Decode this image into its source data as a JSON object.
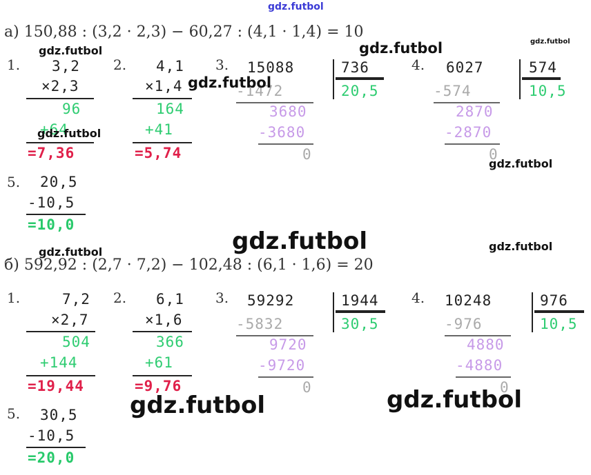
{
  "watermark": "gdz.futbol",
  "part_a": {
    "equation": "а) 150,88 : (3,2 · 2,3) − 60,27 : (4,1 · 1,4) = 10",
    "s1": {
      "label": "1.",
      "a": "3,2",
      "b": "×2,3",
      "p1": "96",
      "p2": "+64",
      "res": "=7,36"
    },
    "s2": {
      "label": "2.",
      "a": "4,1",
      "b": "×1,4",
      "p1": "164",
      "p2": "+41",
      "res": "=5,74"
    },
    "s3": {
      "label": "3.",
      "dividend": "15088",
      "divisor": "736",
      "quotient": "20,5",
      "sub1": "-1472",
      "rem1": "3680",
      "sub2": "-3680",
      "rem2": "0"
    },
    "s4": {
      "label": "4.",
      "dividend": "6027",
      "divisor": "574",
      "quotient": "10,5",
      "sub1": "-574",
      "rem1": "2870",
      "sub2": "-2870",
      "rem2": "0"
    },
    "s5": {
      "label": "5.",
      "a": "20,5",
      "b": "-10,5",
      "res": "=10,0"
    }
  },
  "part_b": {
    "equation": "б) 592,92 : (2,7 · 7,2) − 102,48 : (6,1 · 1,6) = 20",
    "s1": {
      "label": "1.",
      "a": "7,2",
      "b": "×2,7",
      "p1": "504",
      "p2": "+144",
      "res": "=19,44"
    },
    "s2": {
      "label": "2.",
      "a": "6,1",
      "b": "×1,6",
      "p1": "366",
      "p2": "+61",
      "res": "=9,76"
    },
    "s3": {
      "label": "3.",
      "dividend": "59292",
      "divisor": "1944",
      "quotient": "30,5",
      "sub1": "-5832",
      "rem1": "9720",
      "sub2": "-9720",
      "rem2": "0"
    },
    "s4": {
      "label": "4.",
      "dividend": "10248",
      "divisor": "976",
      "quotient": "10,5",
      "sub1": "-976",
      "rem1": "4880",
      "sub2": "-4880",
      "rem2": "0"
    },
    "s5": {
      "label": "5.",
      "a": "30,5",
      "b": "-10,5",
      "res": "=20,0"
    }
  }
}
